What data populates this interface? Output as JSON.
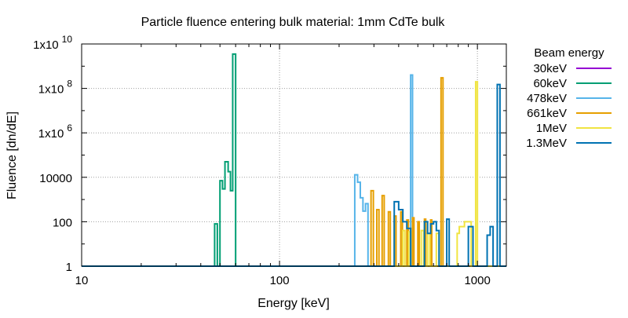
{
  "chart_data": {
    "type": "line",
    "title": "Particle fluence entering bulk material: 1mm CdTe bulk",
    "xlabel": "Energy [keV]",
    "ylabel": "Fluence [dn/dE]",
    "x_scale": "log",
    "y_scale": "log",
    "xlim": [
      10,
      1400
    ],
    "ylim": [
      1,
      10000000000
    ],
    "grid": true,
    "x_ticks": [
      {
        "value": 10,
        "label": "10"
      },
      {
        "value": 100,
        "label": "100"
      },
      {
        "value": 1000,
        "label": "1000"
      }
    ],
    "y_ticks": [
      {
        "value": 1,
        "base": "1",
        "exp": ""
      },
      {
        "value": 100,
        "base": "100",
        "exp": ""
      },
      {
        "value": 10000,
        "base": "10000",
        "exp": ""
      },
      {
        "value": 1000000,
        "base": "1x10",
        "exp": "6"
      },
      {
        "value": 100000000,
        "base": "1x10",
        "exp": "8"
      },
      {
        "value": 10000000000,
        "base": "1x10",
        "exp": "10"
      }
    ],
    "legend": {
      "title": "Beam energy",
      "position": "outside-right"
    },
    "series": [
      {
        "name": "30keV",
        "color": "#9400d3",
        "points": []
      },
      {
        "name": "60keV",
        "color": "#009e73",
        "points": [
          [
            10,
            1
          ],
          [
            47,
            1
          ],
          [
            47,
            80
          ],
          [
            48.5,
            80
          ],
          [
            48.5,
            1
          ],
          [
            50,
            1
          ],
          [
            50,
            7000
          ],
          [
            51.5,
            7000
          ],
          [
            51.5,
            3000
          ],
          [
            53,
            3000
          ],
          [
            53,
            50000
          ],
          [
            55,
            50000
          ],
          [
            55,
            18000
          ],
          [
            56.5,
            18000
          ],
          [
            56.5,
            2500
          ],
          [
            58,
            2500
          ],
          [
            58,
            3500000000
          ],
          [
            60,
            3500000000
          ],
          [
            60,
            1
          ],
          [
            1400,
            1
          ]
        ]
      },
      {
        "name": "478keV",
        "color": "#56b4e9",
        "points": [
          [
            10,
            1
          ],
          [
            240,
            1
          ],
          [
            240,
            13000
          ],
          [
            248,
            13000
          ],
          [
            248,
            6000
          ],
          [
            256,
            6000
          ],
          [
            256,
            1200
          ],
          [
            264,
            1200
          ],
          [
            264,
            300
          ],
          [
            272,
            300
          ],
          [
            272,
            650
          ],
          [
            280,
            650
          ],
          [
            280,
            1
          ],
          [
            460,
            1
          ],
          [
            460,
            400000000
          ],
          [
            470,
            400000000
          ],
          [
            470,
            1
          ],
          [
            1400,
            1
          ]
        ]
      },
      {
        "name": "661keV",
        "color": "#e69f00",
        "points": [
          [
            10,
            1
          ],
          [
            290,
            1
          ],
          [
            290,
            2500
          ],
          [
            298,
            2500
          ],
          [
            298,
            1
          ],
          [
            310,
            1
          ],
          [
            310,
            350
          ],
          [
            318,
            350
          ],
          [
            318,
            1
          ],
          [
            330,
            1
          ],
          [
            330,
            1500
          ],
          [
            338,
            1500
          ],
          [
            338,
            1
          ],
          [
            355,
            1
          ],
          [
            355,
            280
          ],
          [
            363,
            280
          ],
          [
            363,
            1
          ],
          [
            380,
            1
          ],
          [
            380,
            180
          ],
          [
            388,
            180
          ],
          [
            388,
            1
          ],
          [
            410,
            1
          ],
          [
            410,
            280
          ],
          [
            418,
            280
          ],
          [
            418,
            1
          ],
          [
            440,
            1
          ],
          [
            440,
            120
          ],
          [
            448,
            120
          ],
          [
            448,
            1
          ],
          [
            470,
            1
          ],
          [
            470,
            150
          ],
          [
            478,
            150
          ],
          [
            478,
            1
          ],
          [
            500,
            1
          ],
          [
            500,
            100
          ],
          [
            508,
            100
          ],
          [
            508,
            1
          ],
          [
            540,
            1
          ],
          [
            540,
            130
          ],
          [
            548,
            130
          ],
          [
            548,
            1
          ],
          [
            580,
            1
          ],
          [
            580,
            120
          ],
          [
            588,
            120
          ],
          [
            588,
            1
          ],
          [
            655,
            1
          ],
          [
            655,
            300000000
          ],
          [
            670,
            300000000
          ],
          [
            670,
            1
          ],
          [
            1400,
            1
          ]
        ]
      },
      {
        "name": "1MeV",
        "color": "#f0e442",
        "points": [
          [
            10,
            1
          ],
          [
            420,
            1
          ],
          [
            420,
            40
          ],
          [
            430,
            40
          ],
          [
            430,
            1
          ],
          [
            450,
            1
          ],
          [
            450,
            35
          ],
          [
            460,
            35
          ],
          [
            460,
            1
          ],
          [
            520,
            1
          ],
          [
            520,
            40
          ],
          [
            535,
            40
          ],
          [
            535,
            1
          ],
          [
            560,
            1
          ],
          [
            560,
            30
          ],
          [
            575,
            30
          ],
          [
            575,
            1
          ],
          [
            620,
            1
          ],
          [
            620,
            30
          ],
          [
            640,
            30
          ],
          [
            640,
            1
          ],
          [
            790,
            1
          ],
          [
            790,
            30
          ],
          [
            810,
            30
          ],
          [
            810,
            60
          ],
          [
            860,
            60
          ],
          [
            860,
            100
          ],
          [
            930,
            100
          ],
          [
            930,
            1
          ],
          [
            980,
            1
          ],
          [
            980,
            200000000
          ],
          [
            1000,
            200000000
          ],
          [
            1000,
            1
          ],
          [
            1400,
            1
          ]
        ]
      },
      {
        "name": "1.3MeV",
        "color": "#0072b2",
        "points": [
          [
            10,
            1
          ],
          [
            380,
            1
          ],
          [
            380,
            800
          ],
          [
            400,
            800
          ],
          [
            400,
            350
          ],
          [
            420,
            350
          ],
          [
            420,
            100
          ],
          [
            440,
            100
          ],
          [
            440,
            50
          ],
          [
            460,
            50
          ],
          [
            460,
            1
          ],
          [
            540,
            1
          ],
          [
            540,
            100
          ],
          [
            560,
            100
          ],
          [
            560,
            30
          ],
          [
            580,
            30
          ],
          [
            580,
            80
          ],
          [
            600,
            80
          ],
          [
            600,
            100
          ],
          [
            620,
            100
          ],
          [
            620,
            40
          ],
          [
            640,
            40
          ],
          [
            640,
            1
          ],
          [
            700,
            1
          ],
          [
            700,
            130
          ],
          [
            720,
            130
          ],
          [
            720,
            1
          ],
          [
            900,
            1
          ],
          [
            900,
            60
          ],
          [
            950,
            60
          ],
          [
            950,
            1
          ],
          [
            1120,
            1
          ],
          [
            1120,
            25
          ],
          [
            1160,
            25
          ],
          [
            1160,
            60
          ],
          [
            1200,
            60
          ],
          [
            1200,
            1
          ],
          [
            1260,
            1
          ],
          [
            1260,
            150000000
          ],
          [
            1300,
            150000000
          ],
          [
            1300,
            1
          ],
          [
            1400,
            1
          ]
        ]
      }
    ]
  }
}
